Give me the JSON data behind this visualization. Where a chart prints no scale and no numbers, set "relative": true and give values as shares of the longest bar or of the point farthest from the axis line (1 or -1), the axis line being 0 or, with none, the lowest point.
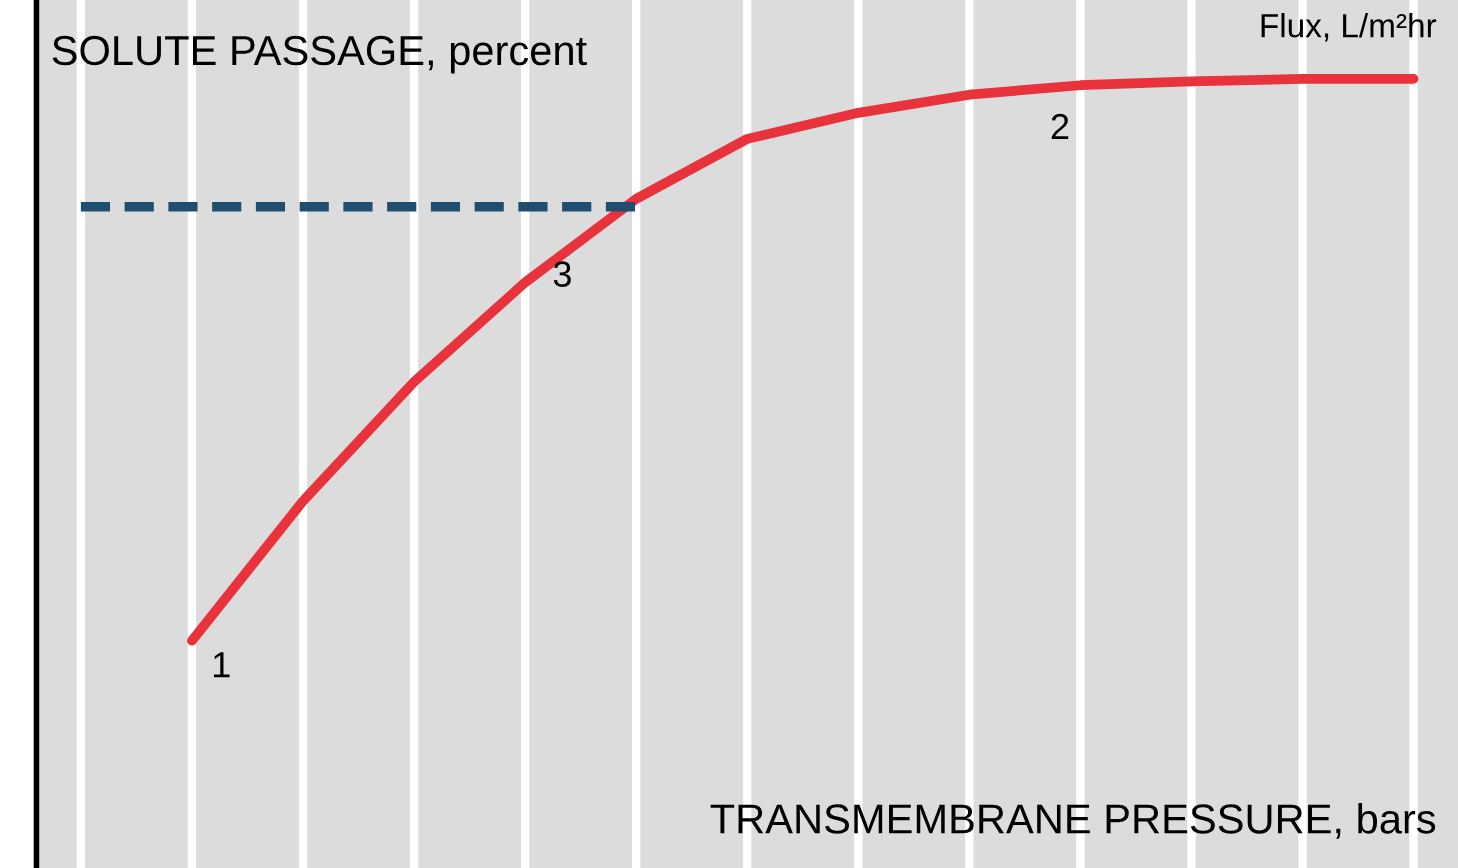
{
  "chart_data": {
    "type": "line",
    "relative": true,
    "ylabel": "SOLUTE PASSAGE, percent",
    "xlabel": "TRANSMEMBRANE PRESSURE, bars",
    "categories": [
      null,
      null,
      null,
      null,
      null,
      null,
      null,
      null,
      null,
      null,
      null,
      null,
      null
    ],
    "grid": "x",
    "marker": "none",
    "series": [
      {
        "color": "#e8323c",
        "line_style": "solid",
        "values": [
          null,
          0.288,
          0.465,
          0.616,
          0.742,
          0.848,
          0.924,
          0.957,
          0.98,
          0.992,
          0.997,
          1,
          1
        ]
      },
      {
        "color": "#1f4e6e",
        "line_style": "dashed",
        "values": [
          0.838,
          0.838,
          0.838,
          0.838,
          0.838,
          0.838,
          null,
          null,
          null,
          null,
          null,
          null,
          null
        ]
      }
    ],
    "annotations": [
      "1",
      "2",
      "3",
      "Flux, L/m²hr"
    ]
  }
}
